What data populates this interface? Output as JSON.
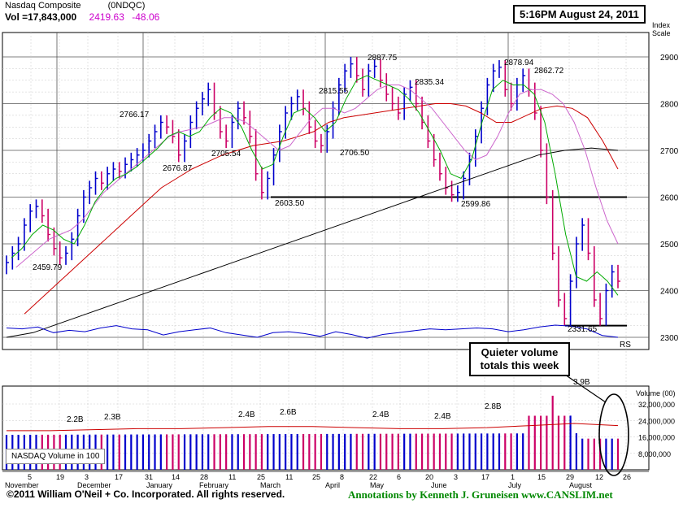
{
  "header": {
    "name": "Nasdaq Composite",
    "symbol": "(0NDQC)",
    "volume": "Vol =17,843,000",
    "price": "2419.63",
    "change": "-48.06",
    "timestamp": "5:16PM August 24, 2011"
  },
  "callout": {
    "line1": "Quieter volume",
    "line2": "totals this week"
  },
  "footer": {
    "copyright": "©2011 William O'Neil + Co. Incorporated. All rights reserved.",
    "credit": "Annotations by Kenneth J. Gruneisen  www.CANSLIM.net"
  },
  "price_panel": {
    "scale_title": [
      "Index",
      "Scale"
    ],
    "rs_label": "RS",
    "support_level": 2600,
    "lows_level": 2325
  },
  "volume_panel": {
    "axis_title": "Volume (00)",
    "legend": "NASDAQ Volume in 100"
  },
  "colors": {
    "up": "#0000cc",
    "down": "#cc0066",
    "ma10": "#00aa00",
    "ma21": "#cc66cc",
    "ma50": "#cc0000",
    "ma200": "#000000",
    "rs": "#0000cc",
    "grid": "#c8c8c8",
    "volavg": "#cc0000"
  },
  "chart_data": {
    "type": "candlestick",
    "title": "Nasdaq Composite (0NDQC)",
    "yaxis": {
      "label": "Index Scale",
      "ticks": [
        2300,
        2400,
        2500,
        2600,
        2700,
        2800,
        2900
      ],
      "range": [
        2280,
        2960
      ]
    },
    "volume_axis": {
      "label": "Volume (00)",
      "ticks": [
        "8,000,000",
        "16,000,000",
        "24,000,000",
        "32,000,000"
      ],
      "values": [
        8000000,
        16000000,
        24000000,
        32000000
      ],
      "range": [
        0,
        38000000
      ]
    },
    "months": [
      "November",
      "December",
      "January",
      "February",
      "March",
      "April",
      "May",
      "June",
      "July",
      "August"
    ],
    "date_ticks": [
      "5",
      "19",
      "3",
      "17",
      "31",
      "14",
      "28",
      "11",
      "25",
      "11",
      "25",
      "8",
      "22",
      "6",
      "20",
      "3",
      "17",
      "1",
      "15",
      "29",
      "12",
      "26"
    ],
    "price_annotations": [
      {
        "label": "2459.79",
        "value": 2459.79
      },
      {
        "label": "2766.17",
        "value": 2766.17
      },
      {
        "label": "2676.87",
        "value": 2676.87
      },
      {
        "label": "2705.54",
        "value": 2705.54
      },
      {
        "label": "2603.50",
        "value": 2603.5
      },
      {
        "label": "2815.55",
        "value": 2815.55
      },
      {
        "label": "2706.50",
        "value": 2706.5
      },
      {
        "label": "2887.75",
        "value": 2887.75
      },
      {
        "label": "2835.34",
        "value": 2835.34
      },
      {
        "label": "2599.86",
        "value": 2599.86
      },
      {
        "label": "2878.94",
        "value": 2878.94
      },
      {
        "label": "2862.72",
        "value": 2862.72
      },
      {
        "label": "2331.65",
        "value": 2331.65
      }
    ],
    "volume_annotations": [
      "2.2B",
      "2.3B",
      "2.4B",
      "2.6B",
      "2.4B",
      "2.4B",
      "2.8B",
      "3.9B"
    ],
    "price_path": [
      2460,
      2480,
      2500,
      2540,
      2570,
      2580,
      2560,
      2520,
      2490,
      2470,
      2480,
      2510,
      2560,
      2600,
      2620,
      2640,
      2630,
      2650,
      2660,
      2655,
      2670,
      2680,
      2690,
      2700,
      2720,
      2740,
      2760,
      2750,
      2730,
      2690,
      2720,
      2760,
      2790,
      2810,
      2830,
      2780,
      2740,
      2720,
      2760,
      2790,
      2770,
      2730,
      2650,
      2610,
      2640,
      2690,
      2740,
      2780,
      2800,
      2815,
      2790,
      2750,
      2720,
      2710,
      2740,
      2790,
      2840,
      2870,
      2885,
      2860,
      2830,
      2870,
      2880,
      2850,
      2820,
      2800,
      2780,
      2820,
      2835,
      2800,
      2760,
      2720,
      2680,
      2650,
      2620,
      2605,
      2610,
      2640,
      2680,
      2730,
      2790,
      2840,
      2870,
      2878,
      2830,
      2800,
      2840,
      2860,
      2830,
      2780,
      2700,
      2600,
      2480,
      2380,
      2340,
      2420,
      2500,
      2540,
      2480,
      2380,
      2340,
      2400,
      2440,
      2420
    ],
    "ma10": [
      2470,
      2490,
      2520,
      2540,
      2530,
      2510,
      2500,
      2540,
      2590,
      2620,
      2640,
      2650,
      2665,
      2685,
      2705,
      2730,
      2740,
      2730,
      2740,
      2770,
      2790,
      2780,
      2750,
      2700,
      2660,
      2670,
      2730,
      2780,
      2790,
      2770,
      2740,
      2760,
      2810,
      2850,
      2860,
      2850,
      2840,
      2830,
      2810,
      2780,
      2740,
      2700,
      2650,
      2640,
      2680,
      2760,
      2830,
      2850,
      2840,
      2840,
      2820,
      2760,
      2650,
      2520,
      2430,
      2420,
      2440,
      2420,
      2390
    ],
    "ma21": [
      2450,
      2470,
      2490,
      2510,
      2520,
      2530,
      2550,
      2580,
      2610,
      2630,
      2650,
      2670,
      2690,
      2710,
      2730,
      2740,
      2745,
      2750,
      2760,
      2770,
      2770,
      2760,
      2740,
      2720,
      2700,
      2710,
      2740,
      2770,
      2790,
      2790,
      2780,
      2790,
      2810,
      2830,
      2840,
      2840,
      2830,
      2810,
      2790,
      2760,
      2730,
      2700,
      2680,
      2690,
      2730,
      2780,
      2820,
      2830,
      2830,
      2820,
      2800,
      2760,
      2700,
      2620,
      2550,
      2500
    ],
    "ma50": [
      2350,
      2380,
      2410,
      2440,
      2470,
      2500,
      2530,
      2560,
      2590,
      2620,
      2640,
      2660,
      2675,
      2690,
      2700,
      2710,
      2715,
      2720,
      2730,
      2740,
      2760,
      2770,
      2775,
      2780,
      2785,
      2790,
      2795,
      2800,
      2800,
      2795,
      2780,
      2760,
      2760,
      2775,
      2790,
      2795,
      2790,
      2770,
      2720,
      2660
    ],
    "ma200": [
      2300,
      2310,
      2330,
      2350,
      2370,
      2390,
      2410,
      2430,
      2450,
      2470,
      2490,
      2510,
      2530,
      2550,
      2570,
      2590,
      2610,
      2630,
      2650,
      2670,
      2690,
      2700,
      2705,
      2700
    ],
    "rs_path": [
      2320,
      2318,
      2322,
      2310,
      2315,
      2312,
      2320,
      2325,
      2318,
      2316,
      2305,
      2312,
      2316,
      2320,
      2310,
      2305,
      2300,
      2310,
      2312,
      2308,
      2302,
      2312,
      2306,
      2298,
      2306,
      2310,
      2314,
      2318,
      2316,
      2318,
      2320,
      2318,
      2312,
      2316,
      2322,
      2326,
      2324,
      2318,
      2304,
      2300
    ],
    "volume_avg": [
      19000000,
      19000000,
      19500000,
      20000000,
      20000000,
      20500000,
      21000000,
      21000000,
      20500000,
      20000000,
      20000000,
      20500000,
      21500000,
      22500000,
      21500000
    ]
  }
}
